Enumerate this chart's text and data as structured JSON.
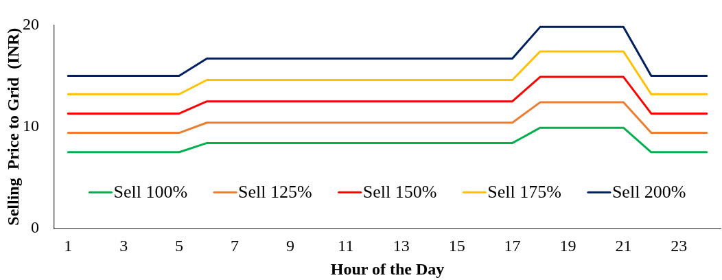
{
  "chart_data": {
    "type": "line",
    "xlabel": "Hour of the Day",
    "ylabel": "Selling  Price to Grid  (INR)",
    "x": [
      1,
      2,
      3,
      4,
      5,
      6,
      7,
      8,
      9,
      10,
      11,
      12,
      13,
      14,
      15,
      16,
      17,
      18,
      19,
      20,
      21,
      22,
      23,
      24
    ],
    "xlim": [
      0.5,
      24.5
    ],
    "xticks": [
      1,
      3,
      5,
      7,
      9,
      11,
      13,
      15,
      17,
      19,
      21,
      23
    ],
    "ylim": [
      0,
      20
    ],
    "yticks": [
      0,
      10,
      20
    ],
    "grid": false,
    "legend": "bottom",
    "marker": "none",
    "line_style": "solid",
    "series": [
      {
        "name": "Sell 100%",
        "color": "#00b050",
        "values": [
          7.5,
          7.5,
          7.5,
          7.5,
          7.5,
          8.4,
          8.4,
          8.4,
          8.4,
          8.4,
          8.4,
          8.4,
          8.4,
          8.4,
          8.4,
          8.4,
          8.4,
          9.9,
          9.9,
          9.9,
          9.9,
          7.5,
          7.5,
          7.5
        ]
      },
      {
        "name": "Sell 125%",
        "color": "#ed7d31",
        "values": [
          9.4,
          9.4,
          9.4,
          9.4,
          9.4,
          10.4,
          10.4,
          10.4,
          10.4,
          10.4,
          10.4,
          10.4,
          10.4,
          10.4,
          10.4,
          10.4,
          10.4,
          12.4,
          12.4,
          12.4,
          12.4,
          9.4,
          9.4,
          9.4
        ]
      },
      {
        "name": "Sell 150%",
        "color": "#ff0000",
        "values": [
          11.3,
          11.3,
          11.3,
          11.3,
          11.3,
          12.5,
          12.5,
          12.5,
          12.5,
          12.5,
          12.5,
          12.5,
          12.5,
          12.5,
          12.5,
          12.5,
          12.5,
          14.9,
          14.9,
          14.9,
          14.9,
          11.3,
          11.3,
          11.3
        ]
      },
      {
        "name": "Sell 175%",
        "color": "#ffc000",
        "values": [
          13.2,
          13.2,
          13.2,
          13.2,
          13.2,
          14.6,
          14.6,
          14.6,
          14.6,
          14.6,
          14.6,
          14.6,
          14.6,
          14.6,
          14.6,
          14.6,
          14.6,
          17.4,
          17.4,
          17.4,
          17.4,
          13.2,
          13.2,
          13.2
        ]
      },
      {
        "name": "Sell 200%",
        "color": "#002060",
        "values": [
          15.0,
          15.0,
          15.0,
          15.0,
          15.0,
          16.7,
          16.7,
          16.7,
          16.7,
          16.7,
          16.7,
          16.7,
          16.7,
          16.7,
          16.7,
          16.7,
          16.7,
          19.8,
          19.8,
          19.8,
          19.8,
          15.0,
          15.0,
          15.0
        ]
      }
    ]
  }
}
